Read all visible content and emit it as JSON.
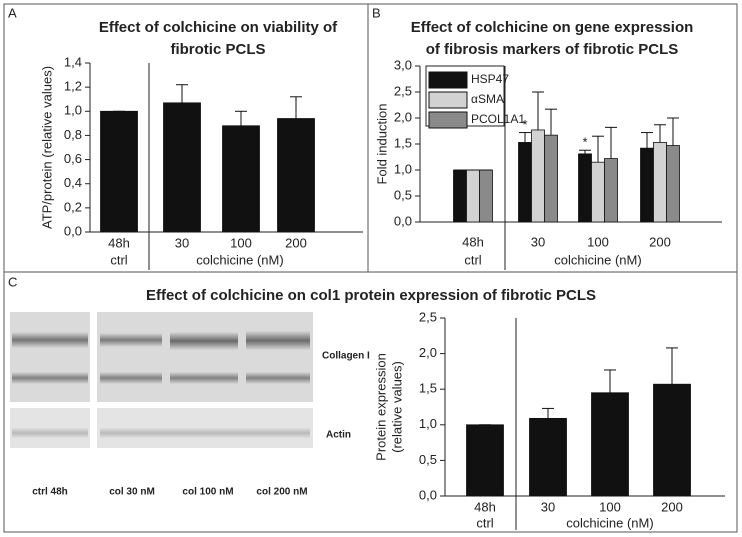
{
  "panel_labels": [
    "A",
    "B",
    "C"
  ],
  "chart_data": [
    {
      "type": "bar",
      "title": [
        "Effect of colchicine on viability of",
        "fibrotic PCLS"
      ],
      "ylabel": [
        "ATP/protein (relative values)"
      ],
      "categories": [
        "48h",
        "30",
        "100",
        "200"
      ],
      "group_labels": [
        "ctrl",
        "colchicine (nM)"
      ],
      "values": [
        1.0,
        1.07,
        0.88,
        0.94
      ],
      "errors": [
        0,
        0.15,
        0.12,
        0.18
      ],
      "color": "#111111",
      "ylim": [
        0,
        1.4
      ],
      "yticks": [
        {
          "value": 0,
          "label": "0,0"
        },
        {
          "value": 0.2,
          "label": "0,2"
        },
        {
          "value": 0.4,
          "label": "0,4"
        },
        {
          "value": 0.6,
          "label": "0,6"
        },
        {
          "value": 0.8,
          "label": "0,8"
        },
        {
          "value": 1.0,
          "label": "1,0"
        },
        {
          "value": 1.2,
          "label": "1,2"
        },
        {
          "value": 1.4,
          "label": "1,4"
        }
      ]
    },
    {
      "type": "bar",
      "title": [
        "Effect of colchicine on gene expression",
        "of fibrosis markers of fibrotic PCLS"
      ],
      "ylabel": [
        "Fold induction"
      ],
      "categories": [
        "48h",
        "30",
        "100",
        "200"
      ],
      "group_labels": [
        "ctrl",
        "colchicine (nM)"
      ],
      "series": [
        {
          "name": "HSP47",
          "color": "#111111",
          "values": [
            1.0,
            1.53,
            1.31,
            1.42
          ],
          "errors": [
            0,
            0.19,
            0.07,
            0.3
          ],
          "significance": [
            null,
            "*",
            "*",
            null
          ]
        },
        {
          "name": "αSMA",
          "color": "#d2d2d2",
          "values": [
            1.0,
            1.77,
            1.15,
            1.53
          ],
          "errors": [
            0,
            0.73,
            0.5,
            0.34
          ]
        },
        {
          "name": "PCOL1A1",
          "color": "#8a8a8a",
          "values": [
            1.0,
            1.67,
            1.22,
            1.47
          ],
          "errors": [
            0,
            0.5,
            0.6,
            0.53
          ]
        }
      ],
      "legend": "upper left",
      "ylim": [
        0,
        3.0
      ],
      "yticks": [
        {
          "value": 0,
          "label": "0,0"
        },
        {
          "value": 0.5,
          "label": "0,5"
        },
        {
          "value": 1.0,
          "label": "1,0"
        },
        {
          "value": 1.5,
          "label": "1,5"
        },
        {
          "value": 2.0,
          "label": "2,0"
        },
        {
          "value": 2.5,
          "label": "2,5"
        },
        {
          "value": 3.0,
          "label": "3,0"
        }
      ]
    },
    {
      "type": "bar",
      "title": [
        "Effect of colchicine on col1 protein expression of fibrotic PCLS"
      ],
      "ylabel": [
        "Protein expression",
        "(relative values)"
      ],
      "categories": [
        "48h",
        "30",
        "100",
        "200"
      ],
      "group_labels": [
        "ctrl",
        "colchicine (nM)"
      ],
      "values": [
        1.0,
        1.09,
        1.45,
        1.57
      ],
      "errors": [
        0,
        0.14,
        0.32,
        0.51
      ],
      "color": "#111111",
      "ylim": [
        0,
        2.5
      ],
      "yticks": [
        {
          "value": 0,
          "label": "0,0"
        },
        {
          "value": 0.5,
          "label": "0,5"
        },
        {
          "value": 1.0,
          "label": "1,0"
        },
        {
          "value": 1.5,
          "label": "1,5"
        },
        {
          "value": 2.0,
          "label": "2,0"
        },
        {
          "value": 2.5,
          "label": "2,5"
        }
      ]
    }
  ],
  "blot": {
    "bands": [
      "Collagen I",
      "Actin"
    ],
    "lanes": [
      "ctrl 48h",
      "col 30 nM",
      "col 100 nM",
      "col 200 nM"
    ]
  }
}
